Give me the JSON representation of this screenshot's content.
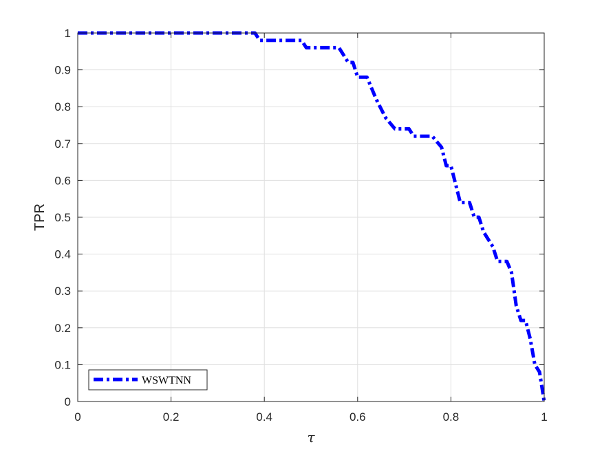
{
  "chart_data": {
    "type": "line",
    "title": "",
    "xlabel": "τ",
    "ylabel": "TPR",
    "xlim": [
      0,
      1
    ],
    "ylim": [
      0,
      1
    ],
    "xticks": [
      "0",
      "0.2",
      "0.4",
      "0.6",
      "0.8",
      "1"
    ],
    "xtick_values": [
      0,
      0.2,
      0.4,
      0.6,
      0.8,
      1
    ],
    "yticks": [
      "0",
      "0.1",
      "0.2",
      "0.3",
      "0.4",
      "0.5",
      "0.6",
      "0.7",
      "0.8",
      "0.9",
      "1"
    ],
    "ytick_values": [
      0,
      0.1,
      0.2,
      0.3,
      0.4,
      0.5,
      0.6,
      0.7,
      0.8,
      0.9,
      1
    ],
    "grid": true,
    "legend_position": "bottom-left",
    "series": [
      {
        "name": "WSWTNN",
        "color": "#0000ff",
        "line_style": "dash-dot",
        "x": [
          0,
          0.38,
          0.39,
          0.48,
          0.49,
          0.56,
          0.58,
          0.59,
          0.6,
          0.62,
          0.64,
          0.66,
          0.68,
          0.71,
          0.72,
          0.76,
          0.78,
          0.79,
          0.8,
          0.82,
          0.84,
          0.85,
          0.86,
          0.87,
          0.89,
          0.9,
          0.92,
          0.93,
          0.94,
          0.95,
          0.96,
          0.97,
          0.98,
          0.99,
          1.0
        ],
        "y": [
          1,
          1,
          0.98,
          0.98,
          0.96,
          0.96,
          0.92,
          0.92,
          0.88,
          0.88,
          0.82,
          0.77,
          0.74,
          0.74,
          0.72,
          0.72,
          0.69,
          0.64,
          0.64,
          0.54,
          0.54,
          0.5,
          0.5,
          0.46,
          0.42,
          0.38,
          0.38,
          0.35,
          0.26,
          0.22,
          0.22,
          0.17,
          0.1,
          0.08,
          0
        ]
      }
    ]
  }
}
